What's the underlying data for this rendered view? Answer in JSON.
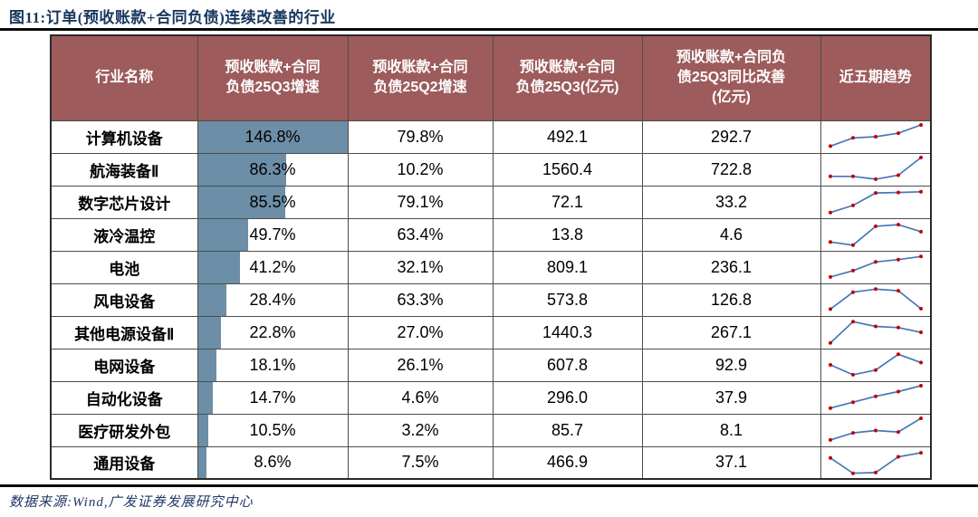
{
  "title": "图11:订单(预收账款+合同负债)连续改善的行业",
  "source_note": "数据来源:Wind,广发证券发展研究中心",
  "colors": {
    "header_bg": "#9D5B5B",
    "header_text": "#FFFFFF",
    "bar_fill": "#6C8EA6",
    "spark_line": "#4677B8",
    "spark_marker": "#C00000",
    "title_color": "#17375E",
    "source_color": "#1F3864",
    "grid_line": "#4D4D4D"
  },
  "chart_data": {
    "type": "table",
    "title": "图11:订单(预收账款+合同负债)连续改善的行业",
    "columns": [
      "行业名称",
      "预收账款+合同\n负债25Q3增速",
      "预收账款+合同\n负债25Q2增速",
      "预收账款+合同\n负债25Q3(亿元)",
      "预收账款+合同负\n债25Q3同比改善\n(亿元)",
      "近五期趋势"
    ],
    "bar_column": "q3_growth",
    "bar_max_pct": 146.8,
    "trend_note": "近五期趋势 sparkline values normalized 0-100",
    "rows": [
      {
        "industry": "计算机设备",
        "q3_growth": "146.8%",
        "q2_growth": "79.8%",
        "q3_value": "492.1",
        "yoy_improvement": "292.7",
        "trend": [
          10,
          45,
          50,
          65,
          100
        ]
      },
      {
        "industry": "航海装备Ⅱ",
        "q3_growth": "86.3%",
        "q2_growth": "10.2%",
        "q3_value": "1560.4",
        "yoy_improvement": "722.8",
        "trend": [
          20,
          20,
          8,
          25,
          100
        ]
      },
      {
        "industry": "数字芯片设计",
        "q3_growth": "85.5%",
        "q2_growth": "79.1%",
        "q3_value": "72.1",
        "yoy_improvement": "33.2",
        "trend": [
          5,
          35,
          88,
          90,
          93
        ]
      },
      {
        "industry": "液冷温控",
        "q3_growth": "49.7%",
        "q2_growth": "63.4%",
        "q3_value": "13.8",
        "yoy_improvement": "4.6",
        "trend": [
          18,
          5,
          85,
          92,
          62
        ]
      },
      {
        "industry": "电池",
        "q3_growth": "41.2%",
        "q2_growth": "32.1%",
        "q3_value": "809.1",
        "yoy_improvement": "236.1",
        "trend": [
          8,
          35,
          72,
          82,
          95
        ]
      },
      {
        "industry": "风电设备",
        "q3_growth": "28.4%",
        "q2_growth": "63.3%",
        "q3_value": "573.8",
        "yoy_improvement": "126.8",
        "trend": [
          10,
          82,
          95,
          88,
          12
        ]
      },
      {
        "industry": "其他电源设备Ⅱ",
        "q3_growth": "22.8%",
        "q2_growth": "27.0%",
        "q3_value": "1440.3",
        "yoy_improvement": "267.1",
        "trend": [
          5,
          95,
          75,
          70,
          50
        ]
      },
      {
        "industry": "电网设备",
        "q3_growth": "18.1%",
        "q2_growth": "26.1%",
        "q3_value": "607.8",
        "yoy_improvement": "92.9",
        "trend": [
          50,
          8,
          28,
          95,
          60
        ]
      },
      {
        "industry": "自动化设备",
        "q3_growth": "14.7%",
        "q2_growth": "4.6%",
        "q3_value": "296.0",
        "yoy_improvement": "37.9",
        "trend": [
          5,
          30,
          55,
          75,
          100
        ]
      },
      {
        "industry": "医疗研发外包",
        "q3_growth": "10.5%",
        "q2_growth": "3.2%",
        "q3_value": "85.7",
        "yoy_improvement": "8.1",
        "trend": [
          8,
          38,
          48,
          42,
          100
        ]
      },
      {
        "industry": "通用设备",
        "q3_growth": "8.6%",
        "q2_growth": "7.5%",
        "q3_value": "466.9",
        "yoy_improvement": "37.1",
        "trend": [
          70,
          5,
          8,
          75,
          92
        ]
      }
    ]
  }
}
